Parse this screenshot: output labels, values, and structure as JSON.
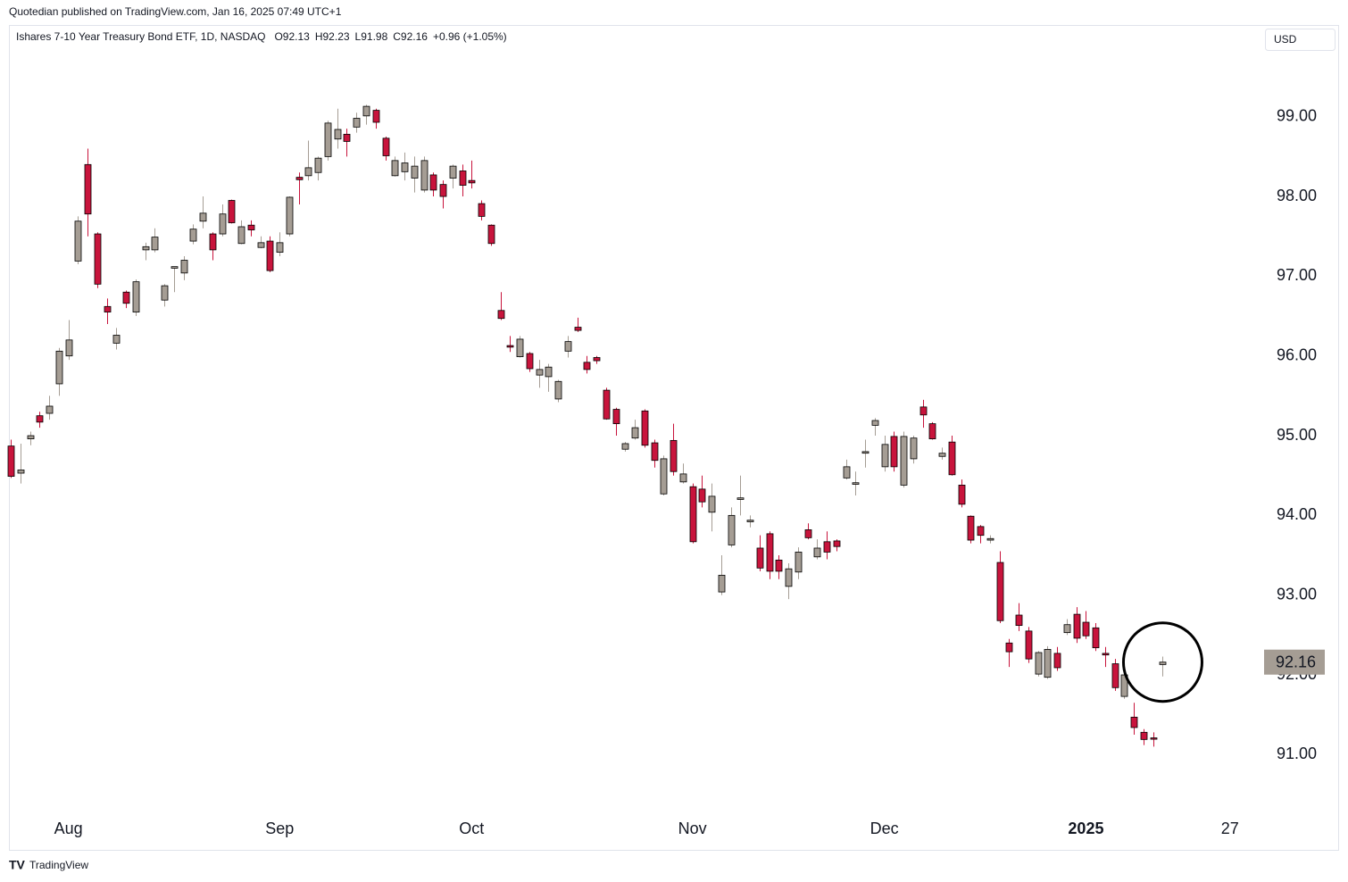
{
  "chart_data": {
    "type": "candlestick",
    "published": "Quotedian published on TradingView.com, Jan 16, 2025 07:49 UTC+1",
    "title": "Ishares 7-10 Year Treasury Bond ETF, 1D, NASDAQ",
    "ohlc_labels": [
      "O92.13",
      "H92.23",
      "L91.98",
      "C92.16",
      "+0.96 (+1.05%)"
    ],
    "currency": "USD",
    "footer": "TradingView",
    "last_price_label": "92.16",
    "up_color": "#a59d94",
    "down_color": "#c8143c",
    "xlim": [
      -0.2,
      130
    ],
    "xticks": [
      {
        "value": 6,
        "label": "Aug"
      },
      {
        "value": 28,
        "label": "Sep"
      },
      {
        "value": 48,
        "label": "Oct"
      },
      {
        "value": 71,
        "label": "Nov"
      },
      {
        "value": 91,
        "label": "Dec"
      },
      {
        "value": 112,
        "label": "2025"
      },
      {
        "value": 127,
        "label": "27"
      }
    ],
    "ylim": [
      90.22,
      100.15
    ],
    "yticks": [
      {
        "value": 91,
        "label": "91.00"
      },
      {
        "value": 92,
        "label": "92.00"
      },
      {
        "value": 93,
        "label": "93.00"
      },
      {
        "value": 94,
        "label": "94.00"
      },
      {
        "value": 95,
        "label": "95.00"
      },
      {
        "value": 96,
        "label": "96.00"
      },
      {
        "value": 97,
        "label": "97.00"
      },
      {
        "value": 98,
        "label": "98.00"
      },
      {
        "value": 99,
        "label": "99.00"
      }
    ],
    "open": [
      94.87,
      94.53,
      94.96,
      95.25,
      95.28,
      95.65,
      96.0,
      97.19,
      98.4,
      97.53,
      96.62,
      96.16,
      96.8,
      96.55,
      97.33,
      97.33,
      96.7,
      97.1,
      97.04,
      97.44,
      97.69,
      97.53,
      97.53,
      97.95,
      97.41,
      97.64,
      97.36,
      97.44,
      97.3,
      97.53,
      98.24,
      98.26,
      98.3,
      98.5,
      98.72,
      98.78,
      98.87,
      99.01,
      99.08,
      98.73,
      98.26,
      98.31,
      98.23,
      98.08,
      98.27,
      98.15,
      98.23,
      98.32,
      98.2,
      97.91,
      97.64,
      96.57,
      96.13,
      95.99,
      96.03,
      95.76,
      95.74,
      95.46,
      96.06,
      96.36,
      95.92,
      95.98,
      95.57,
      95.33,
      94.83,
      94.97,
      95.31,
      94.91,
      94.27,
      94.94,
      94.42,
      94.36,
      94.33,
      94.04,
      93.04,
      93.63,
      94.2,
      93.92,
      93.59,
      93.77,
      93.44,
      93.11,
      93.29,
      93.82,
      93.48,
      93.67,
      93.68,
      94.47,
      94.39,
      94.78,
      95.13,
      94.61,
      94.99,
      94.38,
      94.71,
      95.36,
      95.15,
      94.74,
      94.92,
      94.38,
      93.99,
      93.86,
      93.69,
      93.41,
      92.4,
      92.75,
      92.55,
      92.01,
      91.97,
      92.27,
      92.53,
      92.76,
      92.66,
      92.59,
      92.27,
      92.14,
      91.73,
      91.47,
      91.28,
      91.21,
      92.13
    ],
    "high": [
      94.95,
      94.9,
      95.05,
      95.3,
      95.5,
      96.1,
      96.45,
      97.75,
      98.6,
      97.55,
      96.72,
      96.35,
      96.82,
      96.96,
      97.42,
      97.6,
      96.9,
      97.12,
      97.25,
      97.65,
      98.0,
      97.55,
      97.9,
      97.96,
      97.7,
      97.7,
      97.5,
      97.5,
      97.55,
      98.0,
      98.3,
      98.7,
      98.5,
      98.95,
      99.1,
      98.85,
      99.05,
      99.15,
      99.1,
      98.75,
      98.5,
      98.55,
      98.5,
      98.5,
      98.3,
      98.2,
      98.4,
      98.4,
      98.45,
      97.95,
      97.65,
      96.8,
      96.25,
      96.25,
      96.05,
      95.95,
      95.9,
      95.7,
      96.25,
      96.48,
      96.0,
      96.0,
      95.6,
      95.35,
      94.92,
      95.2,
      95.33,
      94.95,
      94.75,
      95.15,
      94.65,
      94.4,
      94.5,
      94.4,
      93.5,
      94.1,
      94.5,
      94.0,
      93.75,
      93.8,
      93.5,
      93.4,
      93.6,
      93.9,
      93.7,
      93.8,
      93.7,
      94.7,
      94.55,
      94.95,
      95.22,
      95.0,
      95.05,
      95.05,
      95.0,
      95.45,
      95.17,
      94.85,
      95.0,
      94.45,
      94.0,
      93.88,
      93.75,
      93.55,
      92.45,
      92.9,
      92.6,
      92.3,
      92.36,
      92.35,
      92.7,
      92.85,
      92.8,
      92.65,
      92.35,
      92.2,
      92.02,
      91.65,
      91.32,
      91.28,
      92.23
    ],
    "low": [
      94.47,
      94.4,
      94.88,
      95.1,
      95.2,
      95.5,
      95.95,
      97.15,
      97.5,
      96.85,
      96.4,
      96.08,
      96.6,
      96.5,
      97.2,
      97.3,
      96.62,
      96.8,
      96.95,
      97.4,
      97.6,
      97.2,
      97.5,
      97.66,
      97.4,
      97.5,
      97.35,
      97.05,
      97.25,
      97.5,
      97.9,
      98.2,
      98.2,
      98.45,
      98.6,
      98.5,
      98.8,
      98.9,
      98.85,
      98.45,
      98.25,
      98.2,
      98.05,
      98.05,
      98.0,
      97.85,
      98.1,
      98.0,
      98.1,
      97.7,
      97.38,
      96.45,
      96.05,
      95.98,
      95.8,
      95.6,
      95.55,
      95.42,
      95.98,
      96.3,
      95.78,
      95.9,
      95.2,
      95.0,
      94.8,
      94.95,
      94.85,
      94.6,
      94.25,
      94.5,
      94.4,
      93.65,
      94.1,
      93.8,
      93.0,
      93.6,
      94.0,
      93.85,
      93.3,
      93.2,
      93.2,
      92.95,
      93.2,
      93.7,
      93.45,
      93.45,
      93.55,
      94.45,
      94.25,
      94.6,
      95.0,
      94.55,
      94.55,
      94.35,
      94.65,
      95.1,
      94.95,
      94.7,
      94.5,
      94.1,
      93.65,
      93.65,
      93.65,
      92.65,
      92.1,
      92.55,
      92.15,
      91.98,
      91.95,
      92.05,
      92.5,
      92.4,
      92.45,
      92.3,
      92.1,
      91.8,
      91.7,
      91.25,
      91.12,
      91.1,
      91.98
    ],
    "close": [
      94.49,
      94.57,
      95.0,
      95.17,
      95.37,
      96.06,
      96.2,
      97.69,
      97.78,
      96.9,
      96.55,
      96.26,
      96.66,
      96.93,
      97.37,
      97.49,
      96.88,
      97.12,
      97.2,
      97.59,
      97.79,
      97.33,
      97.78,
      97.67,
      97.62,
      97.58,
      97.42,
      97.07,
      97.42,
      97.99,
      98.21,
      98.36,
      98.48,
      98.92,
      98.84,
      98.69,
      98.98,
      99.13,
      98.93,
      98.51,
      98.45,
      98.42,
      98.38,
      98.45,
      98.08,
      98.0,
      98.38,
      98.14,
      98.17,
      97.75,
      97.41,
      96.47,
      96.11,
      96.21,
      95.84,
      95.83,
      95.86,
      95.68,
      96.18,
      96.32,
      95.83,
      95.94,
      95.21,
      95.15,
      94.9,
      95.1,
      94.88,
      94.69,
      94.71,
      94.55,
      94.52,
      93.67,
      94.17,
      94.24,
      93.25,
      94.0,
      94.22,
      93.94,
      93.34,
      93.3,
      93.3,
      93.33,
      93.54,
      93.72,
      93.59,
      93.54,
      93.61,
      94.61,
      94.41,
      94.8,
      95.19,
      94.89,
      94.61,
      94.99,
      94.97,
      95.26,
      94.96,
      94.78,
      94.51,
      94.14,
      93.69,
      93.75,
      93.71,
      92.68,
      92.29,
      92.62,
      92.2,
      92.28,
      92.32,
      92.09,
      92.63,
      92.46,
      92.49,
      92.34,
      92.25,
      91.84,
      92.0,
      91.34,
      91.19,
      91.2,
      92.16
    ]
  }
}
